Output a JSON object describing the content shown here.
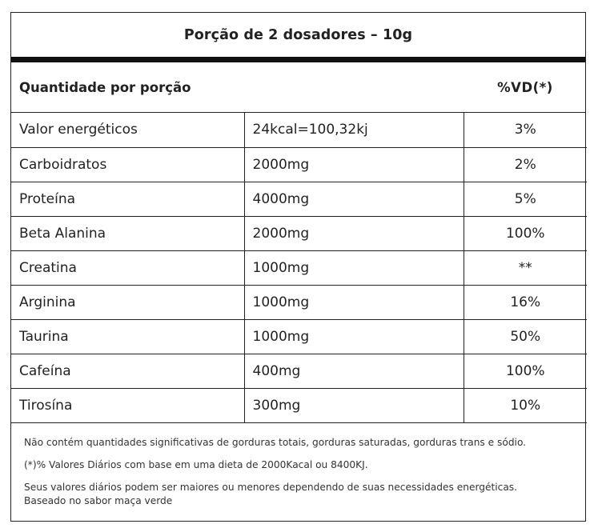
{
  "label": {
    "title": "Porção de 2 dosadores – 10g",
    "header": {
      "left": "Quantidade por porção",
      "right": "%VD(*)"
    },
    "rows": [
      {
        "name": "Valor energéticos",
        "quantity": "24kcal=100,32kj",
        "vd": "3%"
      },
      {
        "name": "Carboidratos",
        "quantity": "2000mg",
        "vd": "2%"
      },
      {
        "name": "Proteína",
        "quantity": "4000mg",
        "vd": "5%"
      },
      {
        "name": "Beta Alanina",
        "quantity": "2000mg",
        "vd": "100%"
      },
      {
        "name": "Creatina",
        "quantity": "1000mg",
        "vd": "**"
      },
      {
        "name": "Arginina",
        "quantity": "1000mg",
        "vd": "16%"
      },
      {
        "name": "Taurina",
        "quantity": "1000mg",
        "vd": "50%"
      },
      {
        "name": "Cafeína",
        "quantity": "400mg",
        "vd": "100%"
      },
      {
        "name": "Tirosína",
        "quantity": "300mg",
        "vd": "10%"
      }
    ],
    "footnotes": [
      "Não contém quantidades significativas de gorduras totais, gorduras saturadas, gorduras trans e sódio.",
      "(*)% Valores Diários com base em uma dieta de 2000Kacal ou 8400KJ.",
      "Seus valores diários podem ser maiores ou menores dependendo de suas necessidades energéticas.",
      "Baseado no sabor maça verde"
    ]
  }
}
